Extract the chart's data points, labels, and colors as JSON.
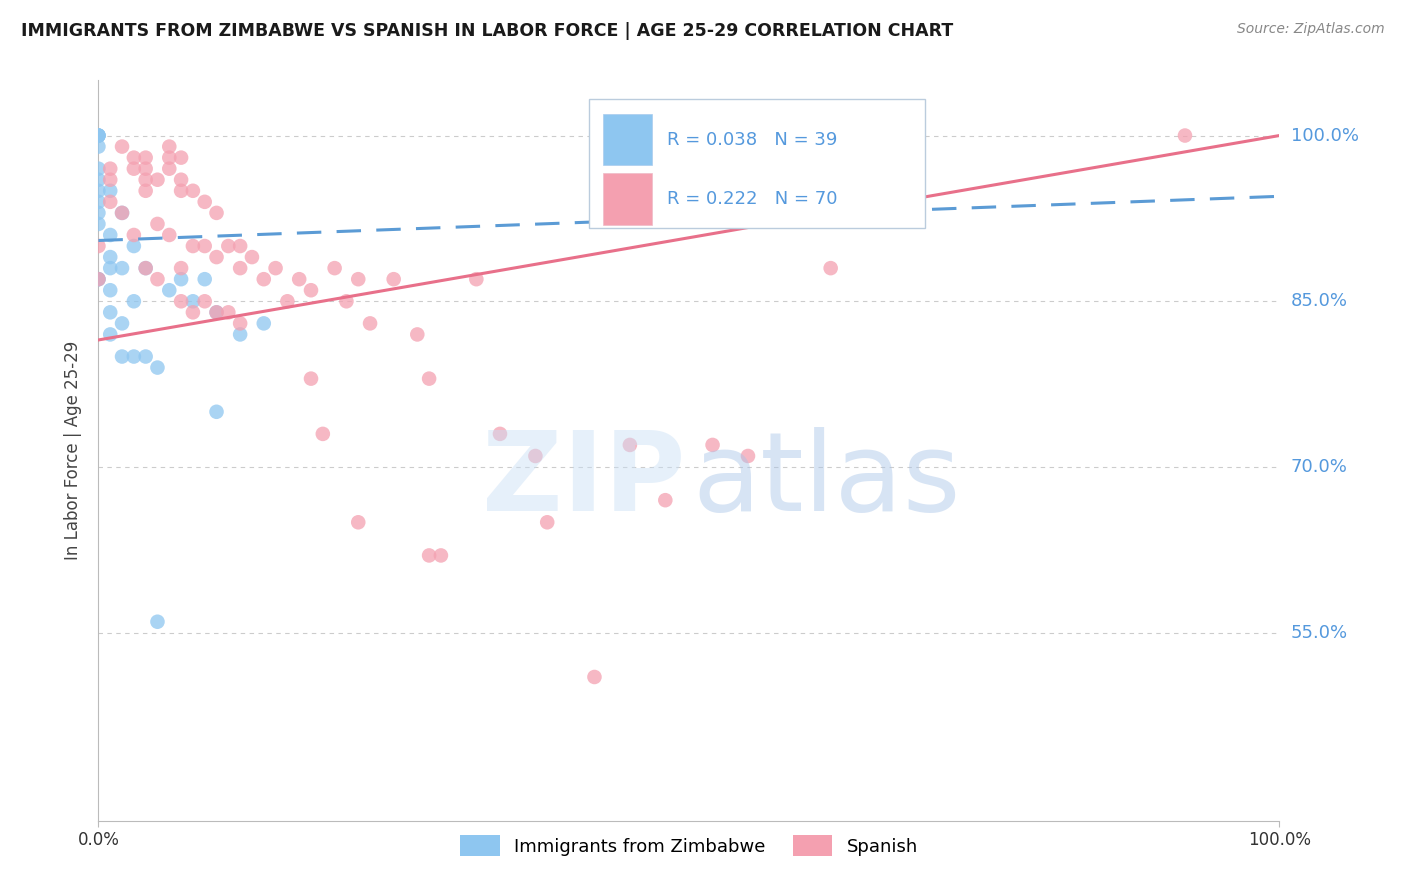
{
  "title": "IMMIGRANTS FROM ZIMBABWE VS SPANISH IN LABOR FORCE | AGE 25-29 CORRELATION CHART",
  "source": "Source: ZipAtlas.com",
  "ylabel": "In Labor Force | Age 25-29",
  "ytick_labels": [
    "100.0%",
    "85.0%",
    "70.0%",
    "55.0%"
  ],
  "ytick_values": [
    1.0,
    0.85,
    0.7,
    0.55
  ],
  "xlim": [
    0.0,
    1.0
  ],
  "ylim": [
    0.38,
    1.05
  ],
  "legend_r1": "R = 0.038",
  "legend_n1": "N = 39",
  "legend_r2": "R = 0.222",
  "legend_n2": "N = 70",
  "color_zimbabwe": "#8EC6F0",
  "color_spanish": "#F4A0B0",
  "color_line_zimbabwe": "#5B9BD5",
  "color_line_spanish": "#E8708A",
  "color_ytick": "#5599DD",
  "color_grid": "#CCCCCC",
  "zimbabwe_x": [
    0.0,
    0.0,
    0.0,
    0.0,
    0.0,
    0.0,
    0.0,
    0.0,
    0.0,
    0.0,
    0.0,
    0.0,
    0.01,
    0.01,
    0.01,
    0.01,
    0.01,
    0.01,
    0.02,
    0.02,
    0.02,
    0.02,
    0.03,
    0.03,
    0.04,
    0.04,
    0.05,
    0.06,
    0.07,
    0.08,
    0.09,
    0.1,
    0.1,
    0.12,
    0.14,
    0.0,
    0.01,
    0.03,
    0.05
  ],
  "zimbabwe_y": [
    1.0,
    1.0,
    1.0,
    1.0,
    0.99,
    0.97,
    0.96,
    0.95,
    0.93,
    0.92,
    0.87,
    0.87,
    0.95,
    0.91,
    0.89,
    0.88,
    0.86,
    0.84,
    0.93,
    0.88,
    0.83,
    0.8,
    0.9,
    0.85,
    0.88,
    0.8,
    0.79,
    0.86,
    0.87,
    0.85,
    0.87,
    0.84,
    0.75,
    0.82,
    0.83,
    0.94,
    0.82,
    0.8,
    0.56
  ],
  "spanish_x": [
    0.0,
    0.0,
    0.01,
    0.01,
    0.01,
    0.02,
    0.02,
    0.03,
    0.03,
    0.03,
    0.04,
    0.04,
    0.04,
    0.04,
    0.04,
    0.05,
    0.05,
    0.05,
    0.06,
    0.06,
    0.06,
    0.06,
    0.07,
    0.07,
    0.07,
    0.07,
    0.07,
    0.08,
    0.08,
    0.08,
    0.09,
    0.09,
    0.09,
    0.1,
    0.1,
    0.1,
    0.11,
    0.11,
    0.12,
    0.12,
    0.12,
    0.13,
    0.14,
    0.15,
    0.16,
    0.17,
    0.18,
    0.18,
    0.19,
    0.2,
    0.21,
    0.22,
    0.22,
    0.23,
    0.25,
    0.27,
    0.28,
    0.28,
    0.29,
    0.32,
    0.34,
    0.37,
    0.38,
    0.42,
    0.45,
    0.48,
    0.52,
    0.55,
    0.62,
    0.92
  ],
  "spanish_y": [
    0.9,
    0.87,
    0.97,
    0.96,
    0.94,
    0.99,
    0.93,
    0.98,
    0.97,
    0.91,
    0.98,
    0.97,
    0.96,
    0.95,
    0.88,
    0.96,
    0.92,
    0.87,
    0.99,
    0.98,
    0.97,
    0.91,
    0.98,
    0.96,
    0.95,
    0.88,
    0.85,
    0.95,
    0.9,
    0.84,
    0.94,
    0.9,
    0.85,
    0.93,
    0.89,
    0.84,
    0.9,
    0.84,
    0.9,
    0.88,
    0.83,
    0.89,
    0.87,
    0.88,
    0.85,
    0.87,
    0.86,
    0.78,
    0.73,
    0.88,
    0.85,
    0.87,
    0.65,
    0.83,
    0.87,
    0.82,
    0.78,
    0.62,
    0.62,
    0.87,
    0.73,
    0.71,
    0.65,
    0.51,
    0.72,
    0.67,
    0.72,
    0.71,
    0.88,
    1.0
  ],
  "zimbabwe_trend_x": [
    0.0,
    1.0
  ],
  "zimbabwe_trend_y": [
    0.905,
    0.945
  ],
  "spanish_trend_x": [
    0.0,
    1.0
  ],
  "spanish_trend_y": [
    0.815,
    1.0
  ]
}
